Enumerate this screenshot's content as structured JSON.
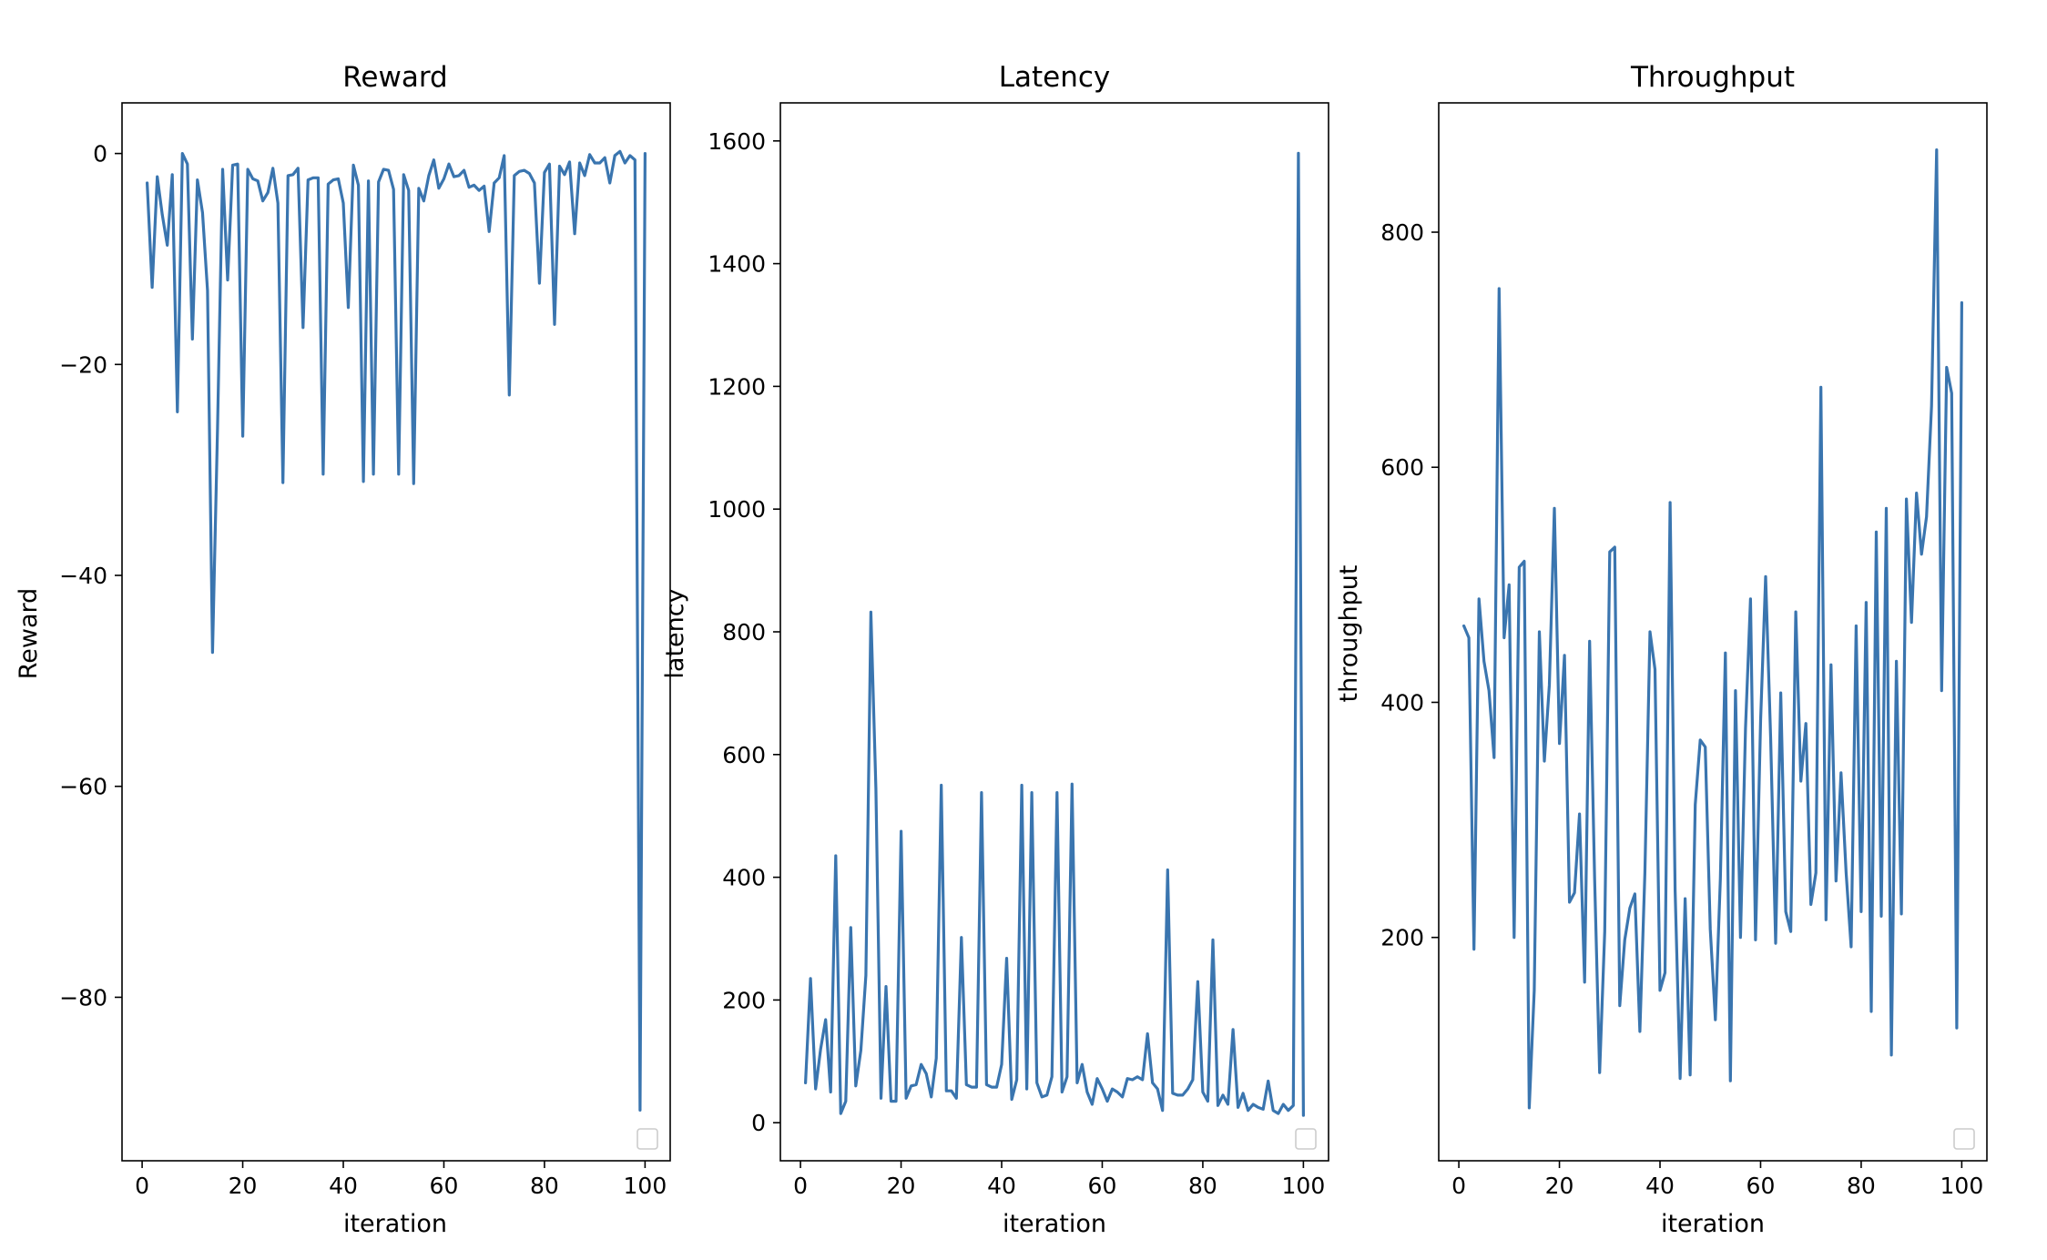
{
  "colors": {
    "series": "#3a75af",
    "background": "#ffffff",
    "axis": "#000000"
  },
  "chart_data": [
    {
      "type": "line",
      "title": "Reward",
      "xlabel": "iteration",
      "ylabel": "Reward",
      "xlim": [
        -4,
        105
      ],
      "ylim": [
        -95.5,
        4.8
      ],
      "xticks": [
        0,
        20,
        40,
        60,
        80,
        100
      ],
      "yticks": [
        0,
        -20,
        -40,
        -60,
        -80
      ],
      "ytick_labels": [
        "0",
        "−20",
        "−40",
        "−60",
        "−80"
      ],
      "grid": false,
      "legend": "lower right (empty)",
      "x": [
        1,
        2,
        3,
        4,
        5,
        6,
        7,
        8,
        9,
        10,
        11,
        12,
        13,
        14,
        15,
        16,
        17,
        18,
        19,
        20,
        21,
        22,
        23,
        24,
        25,
        26,
        27,
        28,
        29,
        30,
        31,
        32,
        33,
        34,
        35,
        36,
        37,
        38,
        39,
        40,
        41,
        42,
        43,
        44,
        45,
        46,
        47,
        48,
        49,
        50,
        51,
        52,
        53,
        54,
        55,
        56,
        57,
        58,
        59,
        60,
        61,
        62,
        63,
        64,
        65,
        66,
        67,
        68,
        69,
        70,
        71,
        72,
        73,
        74,
        75,
        76,
        77,
        78,
        79,
        80,
        81,
        82,
        83,
        84,
        85,
        86,
        87,
        88,
        89,
        90,
        91,
        92,
        93,
        94,
        95,
        96,
        97,
        98,
        99,
        100
      ],
      "y": [
        -2.8,
        -12.7,
        -2.2,
        -5.8,
        -8.7,
        -2,
        -24.5,
        0,
        -1,
        -17.6,
        -2.5,
        -5.6,
        -13,
        -47.3,
        -26,
        -1.5,
        -12,
        -1.1,
        -1,
        -26.8,
        -1.5,
        -2.4,
        -2.6,
        -4.5,
        -3.7,
        -1.4,
        -4.7,
        -31.2,
        -2.1,
        -2,
        -1.4,
        -16.5,
        -2.5,
        -2.3,
        -2.3,
        -30.4,
        -2.9,
        -2.5,
        -2.4,
        -4.7,
        -14.6,
        -1.1,
        -3,
        -31.1,
        -2.6,
        -30.4,
        -2.7,
        -1.5,
        -1.6,
        -3.4,
        -30.4,
        -2,
        -3.5,
        -31.3,
        -3.3,
        -4.5,
        -2.1,
        -0.6,
        -3.3,
        -2.4,
        -1,
        -2.2,
        -2.1,
        -1.6,
        -3.2,
        -3,
        -3.5,
        -3.1,
        -7.4,
        -2.8,
        -2.3,
        -0.2,
        -22.9,
        -2.1,
        -1.7,
        -1.6,
        -1.9,
        -2.8,
        -12.3,
        -1.8,
        -1,
        -16.2,
        -1.2,
        -2,
        -0.8,
        -7.6,
        -0.9,
        -2.1,
        -0.1,
        -0.9,
        -0.9,
        -0.4,
        -2.8,
        -0.2,
        0.2,
        -0.9,
        -0.2,
        -0.6,
        -90.7,
        0
      ]
    },
    {
      "type": "line",
      "title": "Latency",
      "xlabel": "iteration",
      "ylabel": "latency",
      "xlim": [
        -4,
        105
      ],
      "ylim": [
        -62,
        1662
      ],
      "xticks": [
        0,
        20,
        40,
        60,
        80,
        100
      ],
      "yticks": [
        0,
        200,
        400,
        600,
        800,
        1000,
        1200,
        1400,
        1600
      ],
      "ytick_labels": [
        "0",
        "200",
        "400",
        "600",
        "800",
        "1000",
        "1200",
        "1400",
        "1600"
      ],
      "grid": false,
      "legend": "lower right (empty)",
      "x": [
        1,
        2,
        3,
        4,
        5,
        6,
        7,
        8,
        9,
        10,
        11,
        12,
        13,
        14,
        15,
        16,
        17,
        18,
        19,
        20,
        21,
        22,
        23,
        24,
        25,
        26,
        27,
        28,
        29,
        30,
        31,
        32,
        33,
        34,
        35,
        36,
        37,
        38,
        39,
        40,
        41,
        42,
        43,
        44,
        45,
        46,
        47,
        48,
        49,
        50,
        51,
        52,
        53,
        54,
        55,
        56,
        57,
        58,
        59,
        60,
        61,
        62,
        63,
        64,
        65,
        66,
        67,
        68,
        69,
        70,
        71,
        72,
        73,
        74,
        75,
        76,
        77,
        78,
        79,
        80,
        81,
        82,
        83,
        84,
        85,
        86,
        87,
        88,
        89,
        90,
        91,
        92,
        93,
        94,
        95,
        96,
        97,
        98,
        99,
        100
      ],
      "y": [
        65,
        235,
        55,
        120,
        168,
        50,
        435,
        15,
        35,
        318,
        60,
        118,
        240,
        832,
        545,
        40,
        222,
        35,
        35,
        475,
        40,
        60,
        62,
        95,
        80,
        42,
        105,
        550,
        52,
        52,
        40,
        302,
        62,
        58,
        58,
        538,
        62,
        58,
        58,
        95,
        268,
        38,
        70,
        550,
        55,
        538,
        65,
        42,
        45,
        75,
        538,
        50,
        75,
        552,
        65,
        95,
        50,
        30,
        72,
        55,
        35,
        55,
        50,
        42,
        72,
        70,
        75,
        70,
        145,
        65,
        55,
        20,
        412,
        48,
        45,
        45,
        55,
        70,
        230,
        50,
        35,
        298,
        28,
        45,
        30,
        152,
        25,
        48,
        20,
        30,
        25,
        22,
        68,
        20,
        15,
        30,
        20,
        28,
        1580,
        12
      ]
    },
    {
      "type": "line",
      "title": "Throughput",
      "xlabel": "iteration",
      "ylabel": "throughput",
      "xlim": [
        -4,
        105
      ],
      "ylim": [
        10,
        910
      ],
      "xticks": [
        0,
        20,
        40,
        60,
        80,
        100
      ],
      "yticks": [
        200,
        400,
        600,
        800
      ],
      "ytick_labels": [
        "200",
        "400",
        "600",
        "800"
      ],
      "grid": false,
      "legend": "lower right (empty)",
      "x": [
        1,
        2,
        3,
        4,
        5,
        6,
        7,
        8,
        9,
        10,
        11,
        12,
        13,
        14,
        15,
        16,
        17,
        18,
        19,
        20,
        21,
        22,
        23,
        24,
        25,
        26,
        27,
        28,
        29,
        30,
        31,
        32,
        33,
        34,
        35,
        36,
        37,
        38,
        39,
        40,
        41,
        42,
        43,
        44,
        45,
        46,
        47,
        48,
        49,
        50,
        51,
        52,
        53,
        54,
        55,
        56,
        57,
        58,
        59,
        60,
        61,
        62,
        63,
        64,
        65,
        66,
        67,
        68,
        69,
        70,
        71,
        72,
        73,
        74,
        75,
        76,
        77,
        78,
        79,
        80,
        81,
        82,
        83,
        84,
        85,
        86,
        87,
        88,
        89,
        90,
        91,
        92,
        93,
        94,
        95,
        96,
        97,
        98,
        99,
        100
      ],
      "y": [
        465,
        455,
        190,
        488,
        435,
        410,
        353,
        752,
        455,
        500,
        200,
        515,
        520,
        55,
        155,
        460,
        350,
        415,
        565,
        365,
        440,
        230,
        238,
        305,
        162,
        452,
        250,
        85,
        205,
        528,
        532,
        142,
        198,
        225,
        237,
        120,
        255,
        460,
        428,
        155,
        170,
        570,
        240,
        80,
        233,
        83,
        313,
        368,
        362,
        207,
        130,
        250,
        442,
        78,
        410,
        200,
        378,
        488,
        198,
        385,
        507,
        370,
        195,
        408,
        222,
        205,
        477,
        333,
        382,
        228,
        255,
        668,
        215,
        432,
        248,
        340,
        255,
        192,
        465,
        222,
        485,
        137,
        545,
        218,
        565,
        100,
        435,
        220,
        573,
        468,
        578,
        526,
        558,
        652,
        870,
        410,
        685,
        663,
        123,
        740
      ]
    }
  ]
}
